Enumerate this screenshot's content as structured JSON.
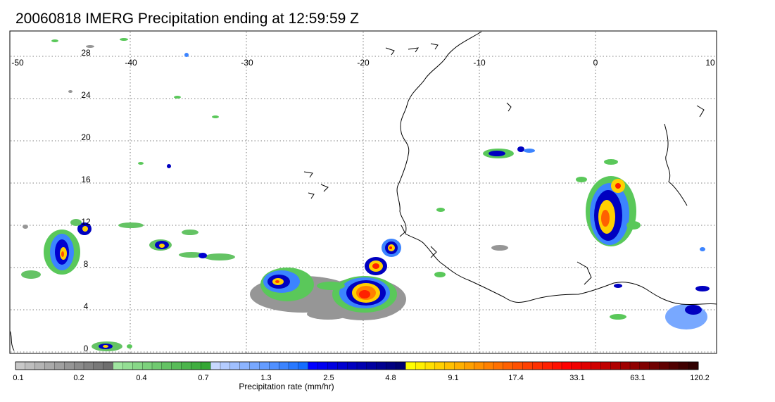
{
  "title": "20060818 IMERG Precipitation ending at 12:59:59 Z",
  "map": {
    "lon_ticks": [
      "-50",
      "-40",
      "-30",
      "-20",
      "-10",
      "0",
      "10"
    ],
    "lat_ticks": [
      "28",
      "24",
      "20",
      "16",
      "12",
      "8",
      "4",
      "0"
    ]
  },
  "colorbar": {
    "title": "Precipitation rate (mm/hr)",
    "labels": [
      "0.1",
      "0.2",
      "0.4",
      "0.7",
      "1.3",
      "2.5",
      "4.8",
      "9.1",
      "17.4",
      "33.1",
      "63.1",
      "120.2"
    ],
    "colors": [
      "#c8c8c8",
      "#bebebe",
      "#b4b4b4",
      "#aaaaaa",
      "#a0a0a0",
      "#969696",
      "#8c8c8c",
      "#828282",
      "#787878",
      "#6e6e6e",
      "#a0e6a0",
      "#94df94",
      "#88d888",
      "#7cd17c",
      "#70ca70",
      "#64c364",
      "#58bc58",
      "#4cb54c",
      "#40ae40",
      "#34a734",
      "#c8d8ff",
      "#b4ccff",
      "#a0c0ff",
      "#8cb4ff",
      "#78a8ff",
      "#649cff",
      "#5090ff",
      "#3c84ff",
      "#2878ff",
      "#146cff",
      "#0000ff",
      "#0000f0",
      "#0000e0",
      "#0000d0",
      "#0000c0",
      "#0000b0",
      "#0000a0",
      "#000090",
      "#000080",
      "#000070",
      "#ffff00",
      "#fff000",
      "#ffe000",
      "#ffd000",
      "#ffc000",
      "#ffb000",
      "#ffa000",
      "#ff9000",
      "#ff8000",
      "#ff7000",
      "#ff6000",
      "#ff5000",
      "#ff4000",
      "#ff3000",
      "#ff2000",
      "#ff1000",
      "#ff0000",
      "#f00000",
      "#e00000",
      "#d00000",
      "#c00000",
      "#b00000",
      "#a00000",
      "#900000",
      "#800000",
      "#700000",
      "#600000",
      "#500000",
      "#400000",
      "#300000"
    ]
  }
}
